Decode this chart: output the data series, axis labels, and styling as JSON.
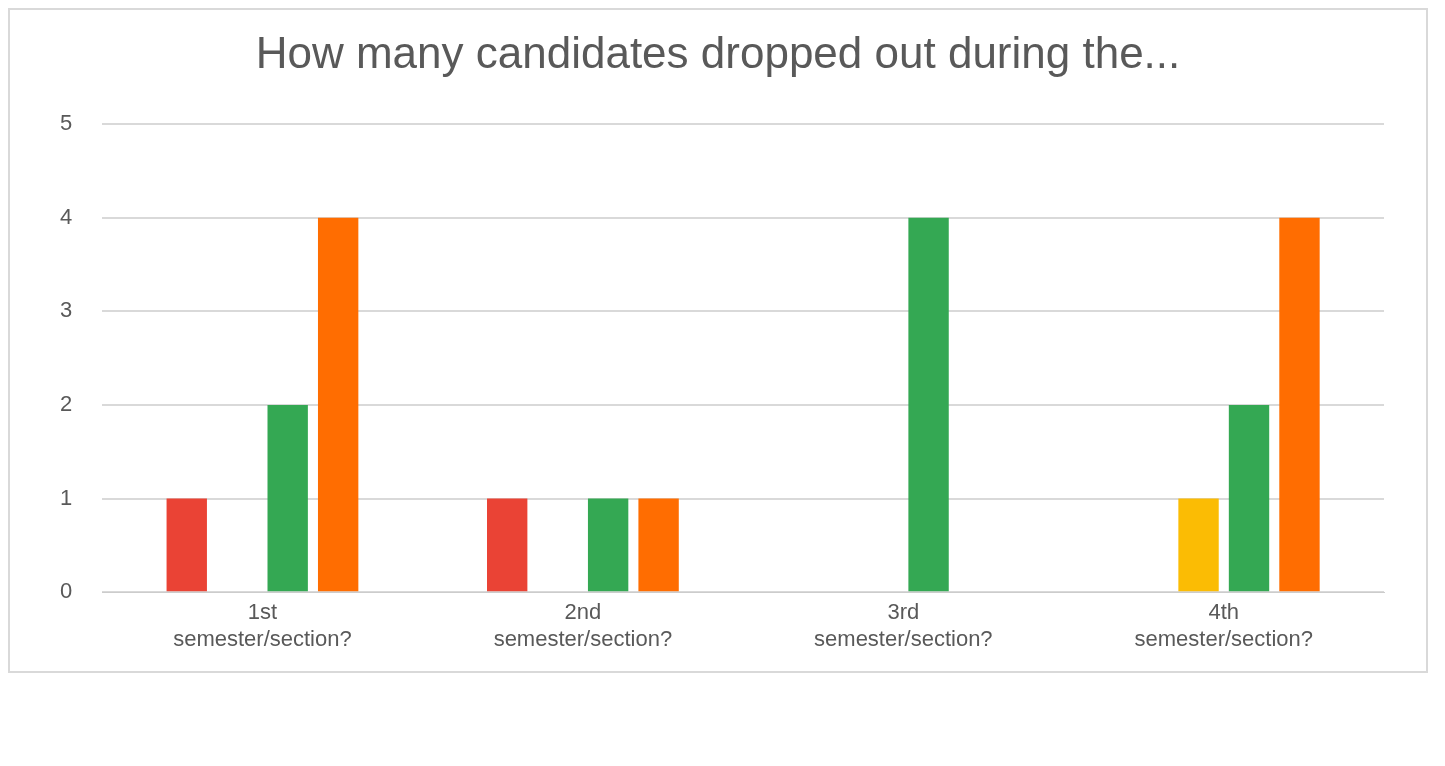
{
  "chart_data": {
    "type": "bar",
    "title": "How many candidates dropped out during the...",
    "categories": [
      "1st semester/section?",
      "2nd semester/section?",
      "3rd semester/section?",
      "4th semester/section?"
    ],
    "series": [
      {
        "color": "#ea4335",
        "values": [
          1,
          1,
          0,
          0
        ]
      },
      {
        "color": "#fbbc04",
        "values": [
          0,
          0,
          0,
          1
        ]
      },
      {
        "color": "#34a853",
        "values": [
          2,
          1,
          4,
          2
        ]
      },
      {
        "color": "#ff6d01",
        "values": [
          4,
          1,
          0,
          4
        ]
      }
    ],
    "ylim": [
      0,
      5
    ],
    "yticks": [
      0,
      1,
      2,
      3,
      4,
      5
    ],
    "grid": "y",
    "legend": false
  }
}
